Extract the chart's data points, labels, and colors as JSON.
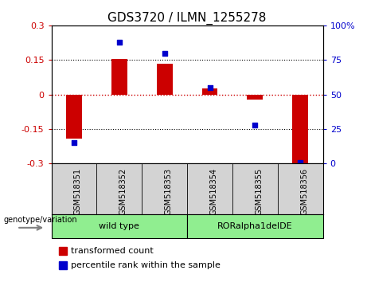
{
  "title": "GDS3720 / ILMN_1255278",
  "categories": [
    "GSM518351",
    "GSM518352",
    "GSM518353",
    "GSM518354",
    "GSM518355",
    "GSM518356"
  ],
  "red_bars": [
    -0.19,
    0.155,
    0.135,
    0.025,
    -0.022,
    -0.3
  ],
  "blue_dots": [
    15,
    88,
    80,
    55,
    28,
    1
  ],
  "ylim_left": [
    -0.3,
    0.3
  ],
  "ylim_right": [
    0,
    100
  ],
  "yticks_left": [
    -0.3,
    -0.15,
    0,
    0.15,
    0.3
  ],
  "yticks_right": [
    0,
    25,
    50,
    75,
    100
  ],
  "ytick_labels_left": [
    "-0.3",
    "-0.15",
    "0",
    "0.15",
    "0.3"
  ],
  "ytick_labels_right": [
    "0",
    "25",
    "50",
    "75",
    "100%"
  ],
  "group_data": [
    {
      "label": "wild type",
      "start": 0,
      "end": 2,
      "color": "#90EE90"
    },
    {
      "label": "RORalpha1delDE",
      "start": 3,
      "end": 5,
      "color": "#90EE90"
    }
  ],
  "genotype_label": "genotype/variation",
  "legend_items": [
    {
      "label": "transformed count",
      "color": "#cc0000"
    },
    {
      "label": "percentile rank within the sample",
      "color": "#0000cc"
    }
  ],
  "bar_color": "#cc0000",
  "dot_color": "#0000cc",
  "bar_width": 0.35,
  "zero_line_color": "#cc0000",
  "bg_color": "#ffffff",
  "plot_bg": "#ffffff",
  "xtick_bg": "#d3d3d3",
  "title_fontsize": 11,
  "tick_fontsize": 8,
  "label_fontsize": 8,
  "cat_fontsize": 7,
  "legend_fontsize": 8
}
